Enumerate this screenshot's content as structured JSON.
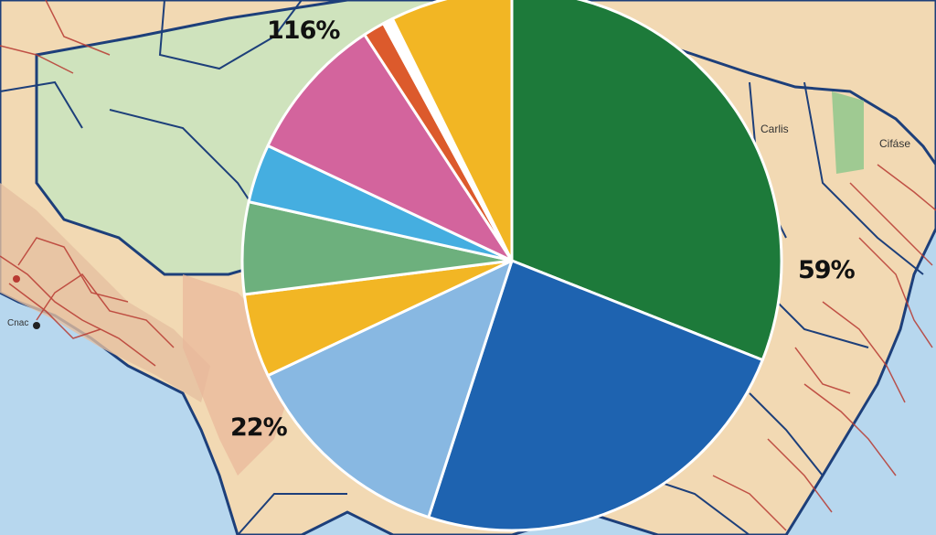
{
  "chart_data": {
    "type": "pie",
    "title": "",
    "unit": "%",
    "series": [
      {
        "value": 31,
        "color": "#1d7a3a"
      },
      {
        "value": 24,
        "color": "#1e63b0"
      },
      {
        "value": 13,
        "color": "#88b8e2"
      },
      {
        "value": 5,
        "color": "#f2b624"
      },
      {
        "value": 5.5,
        "color": "#6db07d"
      },
      {
        "value": 3.5,
        "color": "#45aee0"
      },
      {
        "value": 8.8,
        "color": "#d3649d"
      },
      {
        "value": 1.3,
        "color": "#dc5a2c"
      },
      {
        "value": 0.6,
        "color": "#ffffff"
      },
      {
        "value": 7.3,
        "color": "#f2b624"
      }
    ],
    "labels": [
      "116%",
      "59%",
      "22%"
    ]
  },
  "map": {
    "city_labels": [
      "Carlis",
      "Cifáse",
      "Cnac"
    ]
  },
  "colors": {
    "ocean": "#b7d7ee",
    "land": "#f2d9b3",
    "forest": "#cfe3bd",
    "border": "#1d3f7a",
    "roads": "#b83a32"
  }
}
